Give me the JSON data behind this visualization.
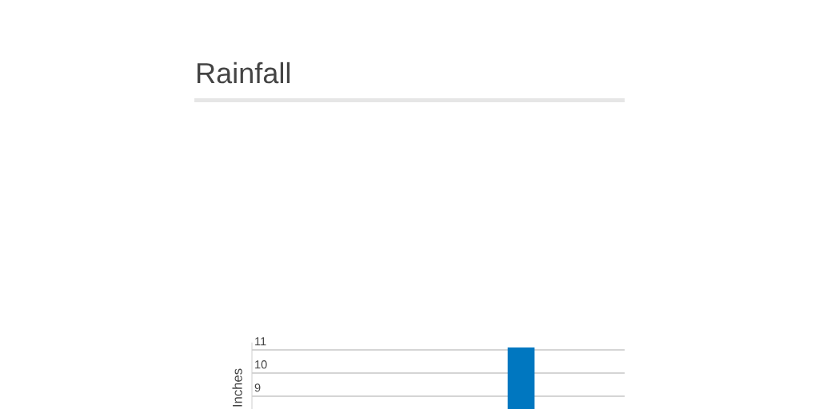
{
  "chart_data": {
    "type": "bar",
    "title": "Rainfall",
    "ylabel": "Inches",
    "categories": [
      null,
      null,
      null,
      null,
      null,
      null,
      null,
      null,
      null
    ],
    "values": [
      null,
      null,
      null,
      null,
      null,
      null,
      11.1,
      null,
      null
    ],
    "color": "#0077c0",
    "ylim": [
      8.45,
      11.3
    ],
    "yticks": [
      9,
      10,
      11
    ],
    "grid": "y"
  }
}
